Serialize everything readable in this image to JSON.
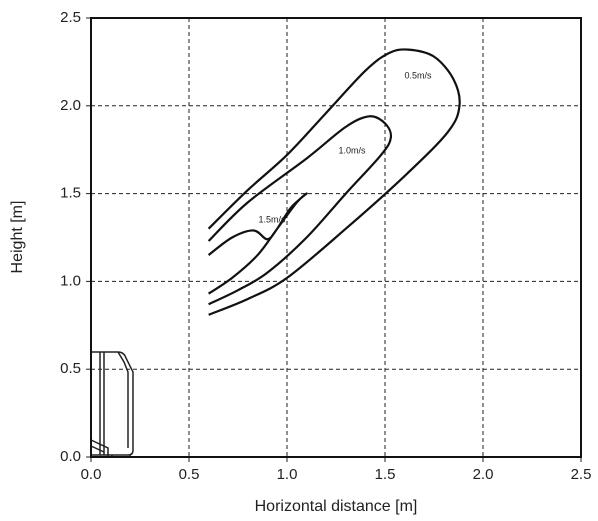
{
  "chart_data": {
    "type": "contour",
    "xlabel": "Horizontal distance [m]",
    "ylabel": "Height [m]",
    "xlim": [
      0,
      2.5
    ],
    "ylim": [
      0,
      2.5
    ],
    "xticks": [
      {
        "value": 0,
        "label": "0.0"
      },
      0.5,
      {
        "value": 1,
        "label": "1.0"
      },
      1.5,
      {
        "value": 2,
        "label": "2.0"
      },
      2.5
    ],
    "yticks": [
      {
        "value": 0,
        "label": "0.0"
      },
      0.5,
      {
        "value": 1,
        "label": "1.0"
      },
      1.5,
      {
        "value": 2,
        "label": "2.0"
      },
      2.5
    ],
    "grid": true,
    "series": [
      {
        "name": "0.5m/s",
        "color": "#111111",
        "x": [
          0.6,
          0.8,
          1.0,
          1.2,
          1.4,
          1.52,
          1.62,
          1.75,
          1.85,
          1.88,
          1.82,
          1.6,
          1.3,
          1.0,
          0.8,
          0.6
        ],
        "values": [
          1.3,
          1.52,
          1.72,
          1.96,
          2.2,
          2.3,
          2.32,
          2.28,
          2.15,
          2.0,
          1.85,
          1.6,
          1.3,
          1.02,
          0.9,
          0.81
        ]
      },
      {
        "name": "1.0m/s",
        "color": "#111111",
        "x": [
          0.6,
          0.8,
          1.1,
          1.3,
          1.42,
          1.5,
          1.53,
          1.48,
          1.3,
          1.1,
          0.9,
          0.75,
          0.6
        ],
        "values": [
          1.23,
          1.45,
          1.7,
          1.88,
          1.94,
          1.9,
          1.82,
          1.72,
          1.5,
          1.25,
          1.05,
          0.95,
          0.87
        ]
      },
      {
        "name": "1.5m/s",
        "color": "#111111",
        "x": [
          0.6,
          0.72,
          0.83,
          0.9,
          0.95,
          1.02,
          1.1,
          1.05,
          0.95,
          0.85,
          0.72,
          0.6
        ],
        "values": [
          1.15,
          1.25,
          1.29,
          1.24,
          1.3,
          1.42,
          1.5,
          1.45,
          1.3,
          1.15,
          1.02,
          0.93
        ]
      }
    ]
  }
}
